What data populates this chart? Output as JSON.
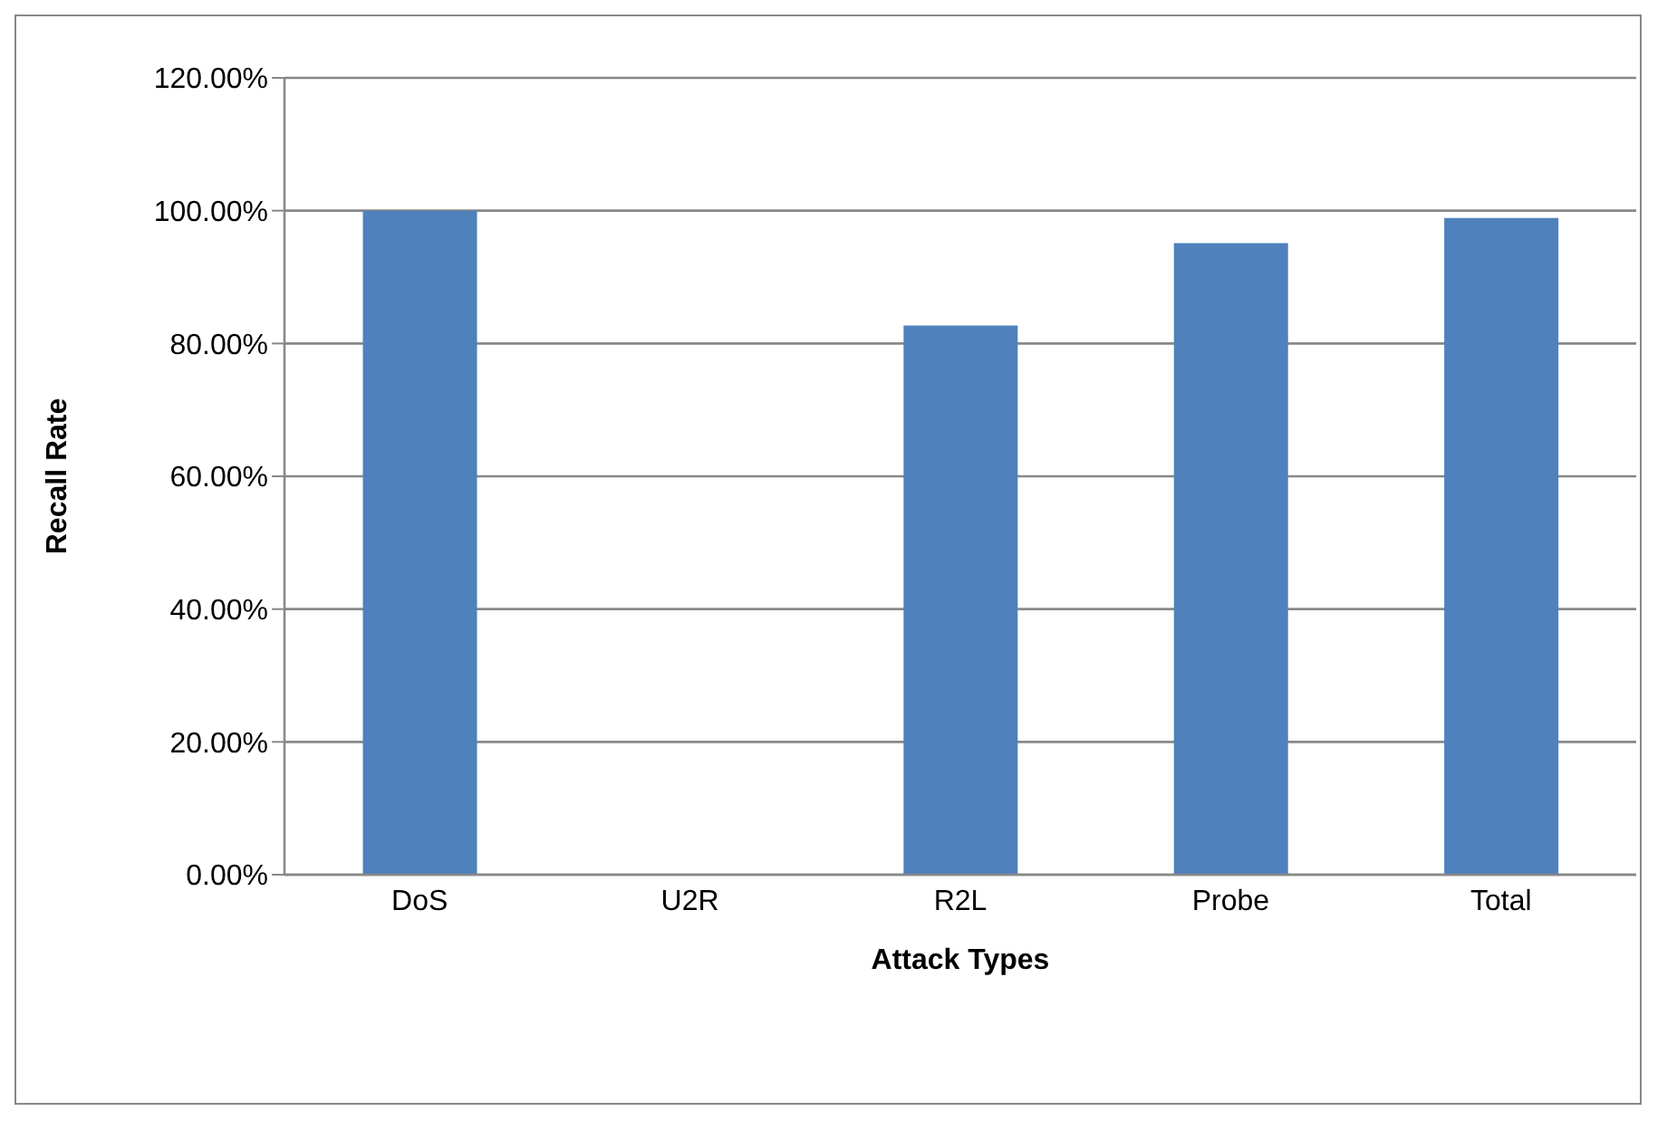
{
  "chart_data": {
    "type": "bar",
    "xlabel": "Attack Types",
    "ylabel": "Recall Rate",
    "categories": [
      "DoS",
      "U2R",
      "R2L",
      "Probe",
      "Total"
    ],
    "values": [
      100,
      0,
      82.7,
      95.1,
      98.9
    ],
    "color": "#4f81bd",
    "ylim": [
      0,
      120
    ],
    "yticks": [
      {
        "value": 0,
        "label": "0.00%"
      },
      {
        "value": 20,
        "label": "20.00%"
      },
      {
        "value": 40,
        "label": "40.00%"
      },
      {
        "value": 60,
        "label": "60.00%"
      },
      {
        "value": 80,
        "label": "80.00%"
      },
      {
        "value": 100,
        "label": "100.00%"
      },
      {
        "value": 120,
        "label": "120.00%"
      }
    ],
    "grid": "y"
  }
}
